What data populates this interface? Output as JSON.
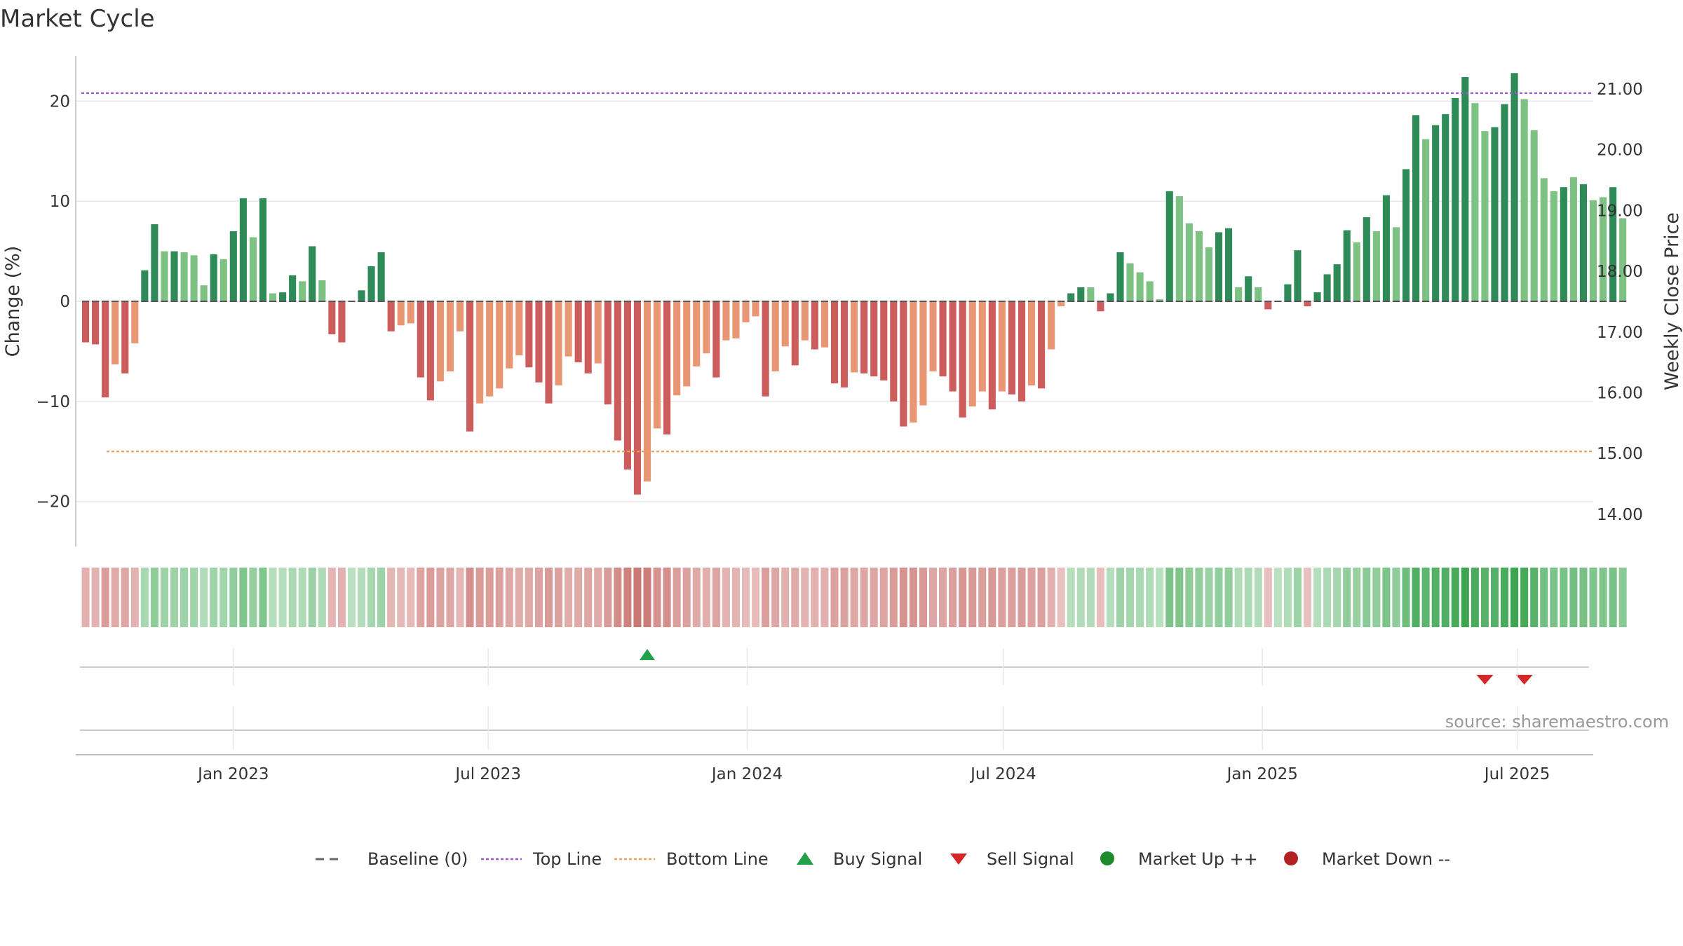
{
  "chart_data": {
    "type": "bar",
    "title": "Market Cycle",
    "ylabel": "Change (%)",
    "y2label": "Weekly Close Price",
    "ylim": [
      -24.5,
      24.5
    ],
    "y_ticks": [
      20,
      10,
      0,
      -10,
      -20
    ],
    "y_tick_labels": [
      "20",
      "10",
      "0",
      "−10",
      "−20"
    ],
    "y2_tick_labels": [
      "21.00",
      "20.00",
      "19.00",
      "18.00",
      "17.00",
      "16.00",
      "15.00",
      "14.00"
    ],
    "x_range": [
      "2022-09-11",
      "2025-08-24"
    ],
    "x_ticks": [
      {
        "date": "2023-01-01",
        "label": "Jan 2023"
      },
      {
        "date": "2023-07-01",
        "label": "Jul 2023"
      },
      {
        "date": "2024-01-01",
        "label": "Jan 2024"
      },
      {
        "date": "2024-07-01",
        "label": "Jul 2024"
      },
      {
        "date": "2025-01-01",
        "label": "Jan 2025"
      },
      {
        "date": "2025-07-01",
        "label": "Jul 2025"
      }
    ],
    "start_week": "2022-09-18",
    "baseline": 0,
    "top_line": 20.8,
    "bottom_line": -15,
    "values": [
      -4.1,
      -4.3,
      -9.6,
      -6.3,
      -7.2,
      -4.2,
      3.1,
      7.7,
      5.0,
      5.0,
      4.9,
      4.6,
      1.6,
      4.7,
      4.2,
      7.0,
      10.3,
      6.4,
      10.3,
      0.8,
      0.9,
      2.6,
      2.0,
      5.5,
      2.1,
      -3.3,
      -4.1,
      0.0,
      1.1,
      3.5,
      4.9,
      -3.0,
      -2.4,
      -2.2,
      -7.6,
      -9.9,
      -8.0,
      -7.0,
      -3.0,
      -13.0,
      -10.2,
      -9.5,
      -8.7,
      -6.7,
      -5.4,
      -6.6,
      -8.1,
      -10.2,
      -8.4,
      -5.5,
      -6.1,
      -7.2,
      -6.2,
      -10.3,
      -13.9,
      -16.8,
      -19.3,
      -18.0,
      -12.7,
      -13.3,
      -9.4,
      -8.5,
      -6.5,
      -5.2,
      -7.6,
      -3.9,
      -3.7,
      -2.1,
      -1.5,
      -9.5,
      -7.0,
      -4.5,
      -6.4,
      -3.9,
      -4.8,
      -4.6,
      -8.2,
      -8.6,
      -7.1,
      -7.2,
      -7.5,
      -7.9,
      -10.0,
      -12.5,
      -12.1,
      -10.4,
      -7.0,
      -7.5,
      -9.0,
      -11.6,
      -10.5,
      -9.0,
      -10.8,
      -9.0,
      -9.3,
      -10.0,
      -8.4,
      -8.7,
      -4.8,
      -0.5,
      0.8,
      1.4,
      1.4,
      -1.0,
      0.8,
      4.9,
      3.8,
      2.9,
      2.0,
      0.2,
      11.0,
      10.5,
      7.8,
      7.0,
      5.4,
      6.9,
      7.3,
      1.4,
      2.5,
      1.4,
      -0.8,
      0.0,
      1.7,
      5.1,
      -0.5,
      0.9,
      2.7,
      3.7,
      7.1,
      5.9,
      8.4,
      7.0,
      10.6,
      7.4,
      13.2,
      18.6,
      16.2,
      17.6,
      18.7,
      20.3,
      22.4,
      19.8,
      17.0,
      17.4,
      19.7,
      22.8,
      20.2,
      17.1,
      12.3,
      11.0,
      11.4,
      12.4,
      11.7,
      10.1,
      10.4,
      11.4,
      8.3
    ],
    "color_key": [
      1,
      2,
      1,
      3,
      1,
      3,
      0,
      0,
      4,
      0,
      4,
      4,
      4,
      0,
      4,
      0,
      0,
      4,
      0,
      4,
      0,
      0,
      4,
      0,
      4,
      1,
      1,
      0,
      0,
      0,
      0,
      1,
      3,
      3,
      1,
      1,
      3,
      3,
      3,
      1,
      3,
      3,
      3,
      3,
      3,
      1,
      1,
      1,
      3,
      3,
      1,
      1,
      3,
      1,
      1,
      1,
      1,
      3,
      3,
      1,
      3,
      3,
      3,
      3,
      1,
      3,
      3,
      3,
      3,
      1,
      3,
      3,
      1,
      3,
      1,
      3,
      1,
      1,
      3,
      1,
      1,
      1,
      1,
      1,
      3,
      3,
      3,
      1,
      1,
      1,
      3,
      3,
      1,
      3,
      1,
      1,
      3,
      1,
      3,
      3,
      0,
      0,
      4,
      1,
      0,
      0,
      4,
      4,
      4,
      4,
      0,
      4,
      4,
      4,
      4,
      0,
      0,
      4,
      0,
      4,
      1,
      0,
      0,
      0,
      1,
      0,
      0,
      0,
      0,
      4,
      0,
      4,
      0,
      4,
      0,
      0,
      4,
      0,
      0,
      0,
      0,
      4,
      4,
      0,
      0,
      0,
      4,
      4,
      4,
      4,
      0,
      4,
      0,
      4,
      4,
      0,
      4
    ],
    "signals": [
      {
        "type": "buy",
        "date": "2023-10-22"
      },
      {
        "type": "sell",
        "date": "2025-06-08"
      },
      {
        "type": "sell",
        "date": "2025-07-06"
      }
    ],
    "source": "source: sharemaestro.com",
    "legend": [
      {
        "label": "Baseline (0)",
        "marker": "dash",
        "color": "#666666"
      },
      {
        "label": "Top Line",
        "marker": "dot",
        "color": "#9b59d0"
      },
      {
        "label": "Bottom Line",
        "marker": "dot",
        "color": "#e8a05a"
      },
      {
        "label": "Buy Signal",
        "marker": "triangle-up",
        "color": "#22a04a"
      },
      {
        "label": "Sell Signal",
        "marker": "triangle-down",
        "color": "#d62728"
      },
      {
        "label": "Market Up ++",
        "marker": "circle",
        "color": "#1e8a2e"
      },
      {
        "label": "Market Down --",
        "marker": "circle",
        "color": "#b22222"
      }
    ],
    "colors": {
      "dark_green": "#2e8b57",
      "light_green": "#7ec283",
      "dark_red": "#cd5c5c",
      "light_red": "#e99674",
      "grid": "#e8e8e8",
      "axis": "#bbbbbb"
    }
  }
}
